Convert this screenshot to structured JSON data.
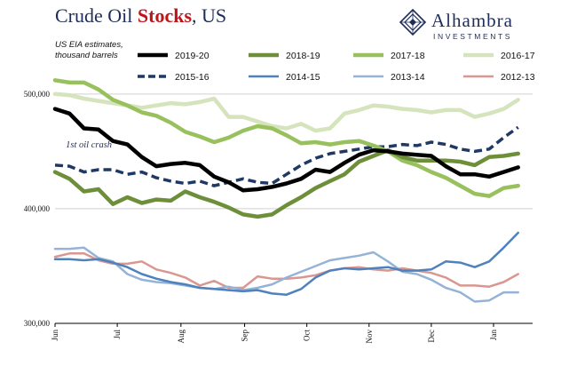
{
  "title_normal": "Crude Oil ",
  "title_emphasis": "Stocks",
  "title_suffix": ", US",
  "note_line1": "US EIA estimates,",
  "note_line2": "thousand barrels",
  "annotation": "1st oil crash",
  "logo": {
    "name": "Alhambra",
    "sub": "INVESTMENTS"
  },
  "colors": {
    "2019-20": "#000000",
    "2018-19": "#6e8f3a",
    "2017-18": "#98c15d",
    "2016-17": "#d5e4bd",
    "2015-16": "#1f3864",
    "2014-15": "#4f81bd",
    "2013-14": "#95b3d7",
    "2012-13": "#d9978f",
    "gridline": "#d0d0d0"
  },
  "chart_data": {
    "type": "line",
    "title": "Crude Oil Stocks, US",
    "xlabel": "",
    "ylabel": "",
    "grid": "horizontal",
    "legend": "top",
    "ylim": [
      300000,
      520000
    ],
    "xlim": [
      0,
      33
    ],
    "x_ticks": [
      {
        "label": "Jun",
        "x": 0
      },
      {
        "label": "Jul",
        "x": 4.3
      },
      {
        "label": "Aug",
        "x": 8.7
      },
      {
        "label": "Sep",
        "x": 13.1
      },
      {
        "label": "Oct",
        "x": 17.4
      },
      {
        "label": "Nov",
        "x": 21.7
      },
      {
        "label": "Dec",
        "x": 26.0
      },
      {
        "label": "Jan",
        "x": 30.3
      }
    ],
    "y_ticks": [
      {
        "label": "300,000",
        "value": 300000
      },
      {
        "label": "400,000",
        "value": 400000
      },
      {
        "label": "500,000",
        "value": 500000
      }
    ],
    "series": [
      {
        "name": "2019-20",
        "dash": false,
        "width": 4.5,
        "values": [
          487000,
          483000,
          470000,
          469000,
          459000,
          456000,
          445000,
          437000,
          439000,
          440000,
          438000,
          428000,
          423000,
          416000,
          417000,
          419000,
          422000,
          426000,
          434000,
          432000,
          440000,
          447000,
          451000,
          450000,
          448000,
          447000,
          446000,
          437000,
          430000,
          430000,
          428000,
          432000,
          436000
        ]
      },
      {
        "name": "2018-19",
        "dash": false,
        "width": 4.5,
        "values": [
          432000,
          426000,
          415000,
          417000,
          404000,
          410000,
          405000,
          408000,
          407000,
          415000,
          410000,
          406000,
          401000,
          395000,
          393000,
          395000,
          403000,
          410000,
          418000,
          424000,
          430000,
          441000,
          446000,
          451000,
          445000,
          442000,
          442000,
          442000,
          441000,
          438000,
          445000,
          446000,
          448000
        ]
      },
      {
        "name": "2017-18",
        "dash": false,
        "width": 4.5,
        "values": [
          512000,
          510000,
          510000,
          504000,
          495000,
          490000,
          484000,
          481000,
          475000,
          467000,
          463000,
          458000,
          462000,
          468000,
          472000,
          470000,
          464000,
          457000,
          458000,
          456000,
          458000,
          459000,
          455000,
          450000,
          442000,
          438000,
          432000,
          427000,
          420000,
          413000,
          411000,
          418000,
          420000
        ]
      },
      {
        "name": "2016-17",
        "dash": false,
        "width": 4.5,
        "values": [
          500000,
          499000,
          496000,
          494000,
          492000,
          490000,
          488000,
          490000,
          492000,
          491000,
          493000,
          496000,
          480000,
          480000,
          476000,
          472000,
          470000,
          474000,
          468000,
          470000,
          483000,
          486000,
          490000,
          489000,
          487000,
          486000,
          484000,
          486000,
          486000,
          480000,
          483000,
          487000,
          495000
        ]
      },
      {
        "name": "2015-16",
        "dash": true,
        "width": 3.5,
        "values": [
          438000,
          437000,
          432000,
          434000,
          434000,
          430000,
          432000,
          427000,
          424000,
          422000,
          424000,
          420000,
          423000,
          426000,
          423000,
          422000,
          430000,
          438000,
          444000,
          448000,
          450000,
          452000,
          454000,
          454000,
          456000,
          455000,
          458000,
          456000,
          452000,
          450000,
          452000,
          462000,
          471000
        ]
      },
      {
        "name": "2014-15",
        "dash": false,
        "width": 2.5,
        "values": [
          356000,
          356000,
          355000,
          356000,
          353000,
          349000,
          343000,
          339000,
          336000,
          334000,
          331000,
          330000,
          329000,
          328000,
          329000,
          326000,
          325000,
          330000,
          340000,
          346000,
          348000,
          347000,
          348000,
          349000,
          346000,
          346000,
          347000,
          354000,
          353000,
          349000,
          354000,
          366000,
          379000
        ]
      },
      {
        "name": "2013-14",
        "dash": false,
        "width": 2.5,
        "values": [
          365000,
          365000,
          366000,
          357000,
          354000,
          343000,
          338000,
          336000,
          335000,
          333000,
          331000,
          330000,
          332000,
          329000,
          331000,
          334000,
          340000,
          345000,
          350000,
          355000,
          357000,
          359000,
          362000,
          354000,
          345000,
          343000,
          338000,
          331000,
          327000,
          319000,
          320000,
          327000,
          327000
        ]
      },
      {
        "name": "2012-13",
        "dash": false,
        "width": 2.5,
        "values": [
          358000,
          361000,
          361000,
          355000,
          352000,
          352000,
          354000,
          347000,
          344000,
          340000,
          333000,
          337000,
          331000,
          331000,
          341000,
          339000,
          339000,
          340000,
          342000,
          346000,
          348000,
          349000,
          347000,
          346000,
          348000,
          346000,
          344000,
          340000,
          333000,
          333000,
          332000,
          336000,
          343000
        ]
      }
    ],
    "annotations": [
      {
        "text": "1st oil crash",
        "x": 0.5,
        "y": 447000
      }
    ]
  }
}
